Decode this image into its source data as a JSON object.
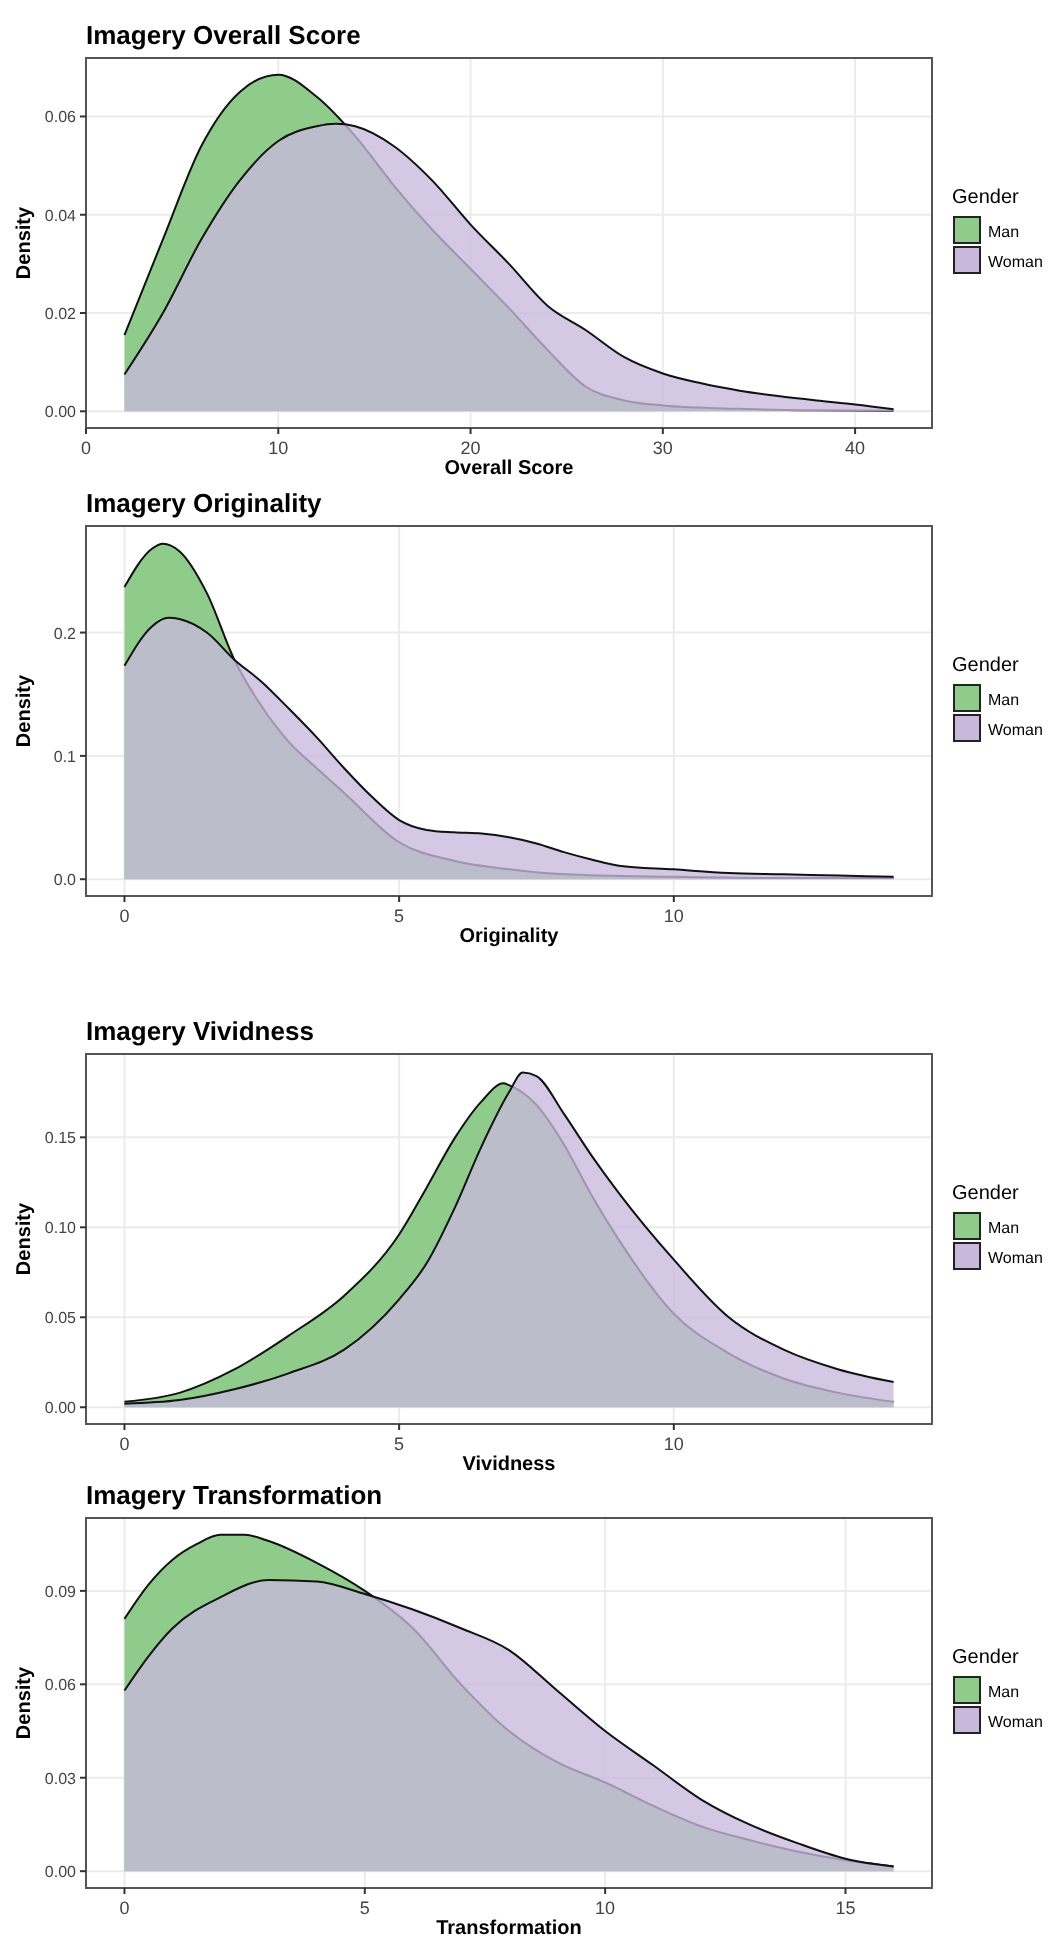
{
  "chart_data": [
    {
      "type": "area",
      "title": "Imagery Overall Score",
      "xlabel": "Overall Score",
      "ylabel": "Density",
      "legend_title": "Gender",
      "legend": "right",
      "grid": true,
      "xlim": [
        0,
        44
      ],
      "ylim": [
        -0.0034,
        0.0719
      ],
      "xticks": [
        0,
        10,
        20,
        30,
        40
      ],
      "yticks": [
        {
          "value": 0,
          "label": "0.00"
        },
        {
          "value": 0.02,
          "label": "0.02"
        },
        {
          "value": 0.04,
          "label": "0.04"
        },
        {
          "value": 0.06,
          "label": "0.06"
        }
      ],
      "series": [
        {
          "name": "Man",
          "color": "#8fcc8b",
          "x": [
            2,
            4,
            6,
            8,
            10,
            12,
            14,
            16,
            18,
            20,
            22,
            24,
            26,
            28,
            30,
            34,
            38,
            42
          ],
          "values": [
            0.0155,
            0.035,
            0.054,
            0.065,
            0.0685,
            0.064,
            0.056,
            0.046,
            0.037,
            0.029,
            0.021,
            0.0125,
            0.005,
            0.0022,
            0.0012,
            0.0005,
            0.0002,
            0.0001
          ]
        },
        {
          "name": "Woman",
          "color": "#c8b8dc",
          "x": [
            2,
            4,
            6,
            8,
            10,
            12,
            13,
            14,
            16,
            18,
            20,
            22,
            24,
            26,
            28,
            30,
            32,
            34,
            36,
            38,
            40,
            42
          ],
          "values": [
            0.0075,
            0.02,
            0.035,
            0.047,
            0.055,
            0.058,
            0.0585,
            0.058,
            0.054,
            0.047,
            0.038,
            0.03,
            0.0215,
            0.0165,
            0.011,
            0.0077,
            0.0057,
            0.0042,
            0.0031,
            0.0022,
            0.0014,
            0.0004
          ]
        }
      ]
    },
    {
      "type": "area",
      "title": "Imagery Originality",
      "xlabel": "Originality",
      "ylabel": "Density",
      "legend_title": "Gender",
      "legend": "right",
      "grid": true,
      "xlim": [
        -0.7,
        14.7
      ],
      "ylim": [
        -0.0136,
        0.2864
      ],
      "xticks": [
        0,
        5,
        10
      ],
      "yticks": [
        {
          "value": 0,
          "label": "0.0"
        },
        {
          "value": 0.1,
          "label": "0.1"
        },
        {
          "value": 0.2,
          "label": "0.2"
        }
      ],
      "series": [
        {
          "name": "Man",
          "color": "#8fcc8b",
          "x": [
            0,
            0.5,
            0.7,
            1,
            1.5,
            2,
            2.5,
            3,
            3.5,
            4,
            5,
            6,
            7,
            8,
            10,
            12,
            14
          ],
          "values": [
            0.237,
            0.268,
            0.272,
            0.266,
            0.232,
            0.178,
            0.14,
            0.111,
            0.09,
            0.07,
            0.03,
            0.015,
            0.008,
            0.004,
            0.002,
            0.001,
            0.001
          ]
        },
        {
          "name": "Woman",
          "color": "#c8b8dc",
          "x": [
            0,
            0.5,
            0.8,
            1,
            1.5,
            2,
            2.5,
            3,
            3.5,
            4,
            4.5,
            5,
            5.5,
            6,
            6.5,
            7,
            7.5,
            8,
            8.5,
            9,
            10,
            11,
            12,
            13,
            14
          ],
          "values": [
            0.173,
            0.205,
            0.212,
            0.211,
            0.2,
            0.178,
            0.16,
            0.138,
            0.115,
            0.09,
            0.067,
            0.048,
            0.04,
            0.038,
            0.037,
            0.034,
            0.029,
            0.022,
            0.016,
            0.011,
            0.008,
            0.005,
            0.004,
            0.003,
            0.002
          ]
        }
      ]
    },
    {
      "type": "area",
      "title": "Imagery Vividness",
      "xlabel": "Vividness",
      "ylabel": "Density",
      "legend_title": "Gender",
      "legend": "right",
      "grid": true,
      "xlim": [
        -0.7,
        14.7
      ],
      "ylim": [
        -0.0093,
        0.1963
      ],
      "xticks": [
        0,
        5,
        10
      ],
      "yticks": [
        {
          "value": 0,
          "label": "0.00"
        },
        {
          "value": 0.05,
          "label": "0.05"
        },
        {
          "value": 0.1,
          "label": "0.10"
        },
        {
          "value": 0.15,
          "label": "0.15"
        }
      ],
      "series": [
        {
          "name": "Man",
          "color": "#8fcc8b",
          "x": [
            0,
            1,
            2,
            3,
            4,
            5,
            5.5,
            6,
            6.5,
            6.9,
            7,
            7.5,
            8,
            8.5,
            9,
            10,
            11,
            12,
            13,
            14
          ],
          "values": [
            0.003,
            0.008,
            0.021,
            0.04,
            0.062,
            0.096,
            0.122,
            0.149,
            0.17,
            0.18,
            0.179,
            0.168,
            0.146,
            0.118,
            0.093,
            0.052,
            0.03,
            0.016,
            0.008,
            0.003
          ]
        },
        {
          "name": "Woman",
          "color": "#c8b8dc",
          "x": [
            0,
            1,
            2,
            3,
            4,
            5,
            5.5,
            6,
            6.5,
            7,
            7.25,
            7.5,
            8,
            8.5,
            9,
            10,
            11,
            12,
            13,
            14
          ],
          "values": [
            0.002,
            0.004,
            0.01,
            0.019,
            0.032,
            0.06,
            0.08,
            0.11,
            0.145,
            0.175,
            0.186,
            0.184,
            0.163,
            0.14,
            0.119,
            0.082,
            0.05,
            0.032,
            0.021,
            0.014
          ]
        }
      ]
    },
    {
      "type": "area",
      "title": "Imagery Transformation",
      "xlabel": "Transformation",
      "ylabel": "Density",
      "legend_title": "Gender",
      "legend": "right",
      "grid": true,
      "xlim": [
        -0.8,
        16.8
      ],
      "ylim": [
        -0.0054,
        0.1134
      ],
      "xticks": [
        0,
        5,
        10,
        15
      ],
      "yticks": [
        {
          "value": 0,
          "label": "0.00"
        },
        {
          "value": 0.03,
          "label": "0.03"
        },
        {
          "value": 0.06,
          "label": "0.06"
        },
        {
          "value": 0.09,
          "label": "0.09"
        }
      ],
      "series": [
        {
          "name": "Man",
          "color": "#8fcc8b",
          "x": [
            0,
            0.5,
            1,
            1.5,
            2,
            2.5,
            3,
            4,
            5,
            6,
            7,
            8,
            9,
            10,
            11,
            12,
            13,
            14,
            15,
            16
          ],
          "values": [
            0.081,
            0.092,
            0.1,
            0.105,
            0.108,
            0.108,
            0.106,
            0.099,
            0.09,
            0.078,
            0.06,
            0.045,
            0.035,
            0.0285,
            0.021,
            0.0144,
            0.01,
            0.0063,
            0.0035,
            0.0015
          ]
        },
        {
          "name": "Woman",
          "color": "#c8b8dc",
          "x": [
            0,
            0.5,
            1,
            2,
            3,
            4,
            5,
            6,
            7,
            8,
            9,
            10,
            11,
            12,
            13,
            14,
            15,
            16
          ],
          "values": [
            0.058,
            0.069,
            0.078,
            0.088,
            0.0935,
            0.093,
            0.089,
            0.084,
            0.078,
            0.071,
            0.058,
            0.045,
            0.034,
            0.023,
            0.015,
            0.009,
            0.004,
            0.0015
          ]
        }
      ]
    }
  ]
}
